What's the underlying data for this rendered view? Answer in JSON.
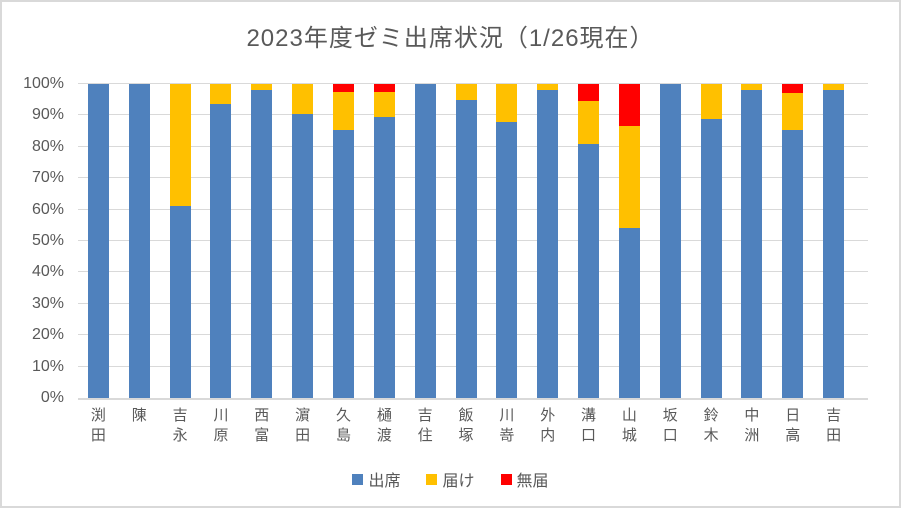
{
  "title": "2023年度ゼミ出席状況（1/26現在）",
  "colors": {
    "attend_blue": "#4F81BD",
    "notice_yellow": "#FFC000",
    "unreported_red": "#FF0000",
    "gridline": "#D9D9D9",
    "text": "#595959"
  },
  "chart_data": {
    "type": "bar",
    "subtype": "stacked-100-percent-column",
    "title": "2023年度ゼミ出席状況（1/26現在）",
    "xlabel": "",
    "ylabel": "",
    "ylim": [
      0,
      100
    ],
    "y_tick_step": 10,
    "y_tick_labels": [
      "0%",
      "10%",
      "20%",
      "30%",
      "40%",
      "50%",
      "60%",
      "70%",
      "80%",
      "90%",
      "100%"
    ],
    "grid": true,
    "legend_position": "bottom",
    "categories": [
      "渕田",
      "陳",
      "吉永",
      "川原",
      "西富",
      "濵田",
      "久島",
      "樋渡",
      "吉住",
      "飯塚",
      "川嵜",
      "外内",
      "溝口",
      "山城",
      "坂口",
      "鈴木",
      "中洲",
      "日高",
      "吉田"
    ],
    "series": [
      {
        "name": "出席",
        "color": "#4F81BD",
        "values": [
          100,
          100,
          61,
          93.5,
          98,
          90.5,
          85.5,
          89.5,
          100,
          95,
          88,
          98,
          81,
          54,
          100,
          89,
          98,
          85.5,
          98
        ]
      },
      {
        "name": "届け",
        "color": "#FFC000",
        "values": [
          0,
          0,
          39,
          6.5,
          2,
          9.5,
          12,
          8,
          0,
          5,
          12,
          2,
          13.5,
          32.5,
          0,
          11,
          2,
          11.5,
          2
        ]
      },
      {
        "name": "無届",
        "color": "#FF0000",
        "values": [
          0,
          0,
          0,
          0,
          0,
          0,
          2.5,
          2.5,
          0,
          0,
          0,
          0,
          5.5,
          13.5,
          0,
          0,
          0,
          3,
          0
        ]
      }
    ]
  }
}
